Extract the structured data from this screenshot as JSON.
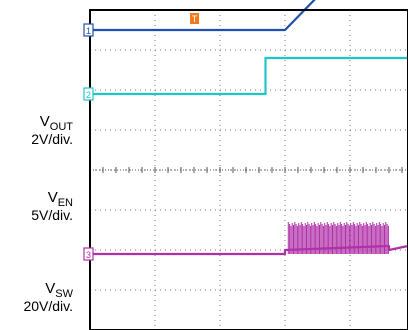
{
  "chart_data": {
    "type": "line",
    "title": "",
    "xlabel": "",
    "ylabel": "",
    "x_divisions": 10,
    "y_divisions": 8,
    "trigger_marker": "T",
    "grid": "dotted",
    "series": [
      {
        "name": "V",
        "subscript": "OUT",
        "scale": "2V/div.",
        "channel": "1",
        "color": "#1f4fb0",
        "points": [
          [
            0,
            3.5
          ],
          [
            3.0,
            3.5
          ],
          [
            4.5,
            6.0
          ],
          [
            5.5,
            6.0
          ],
          [
            10,
            6.0
          ]
        ]
      },
      {
        "name": "V",
        "subscript": "EN",
        "scale": "5V/div.",
        "channel": "2",
        "color": "#22c4c4",
        "points": [
          [
            0,
            1.9
          ],
          [
            2.7,
            1.9
          ],
          [
            2.7,
            2.8
          ],
          [
            10,
            2.8
          ]
        ]
      },
      {
        "name": "V",
        "subscript": "SW",
        "scale": "20V/div.",
        "channel": "3",
        "color": "#b030a8",
        "points": [
          [
            0,
            -2.1
          ],
          [
            3.0,
            -2.1
          ],
          [
            3.0,
            -2.0
          ],
          [
            4.6,
            -1.9
          ],
          [
            4.6,
            -2.0
          ],
          [
            10,
            -1.9
          ]
        ],
        "burst": {
          "x_start": 3.05,
          "x_end": 4.6,
          "top": -1.3,
          "bottom": -2.1
        }
      }
    ]
  }
}
